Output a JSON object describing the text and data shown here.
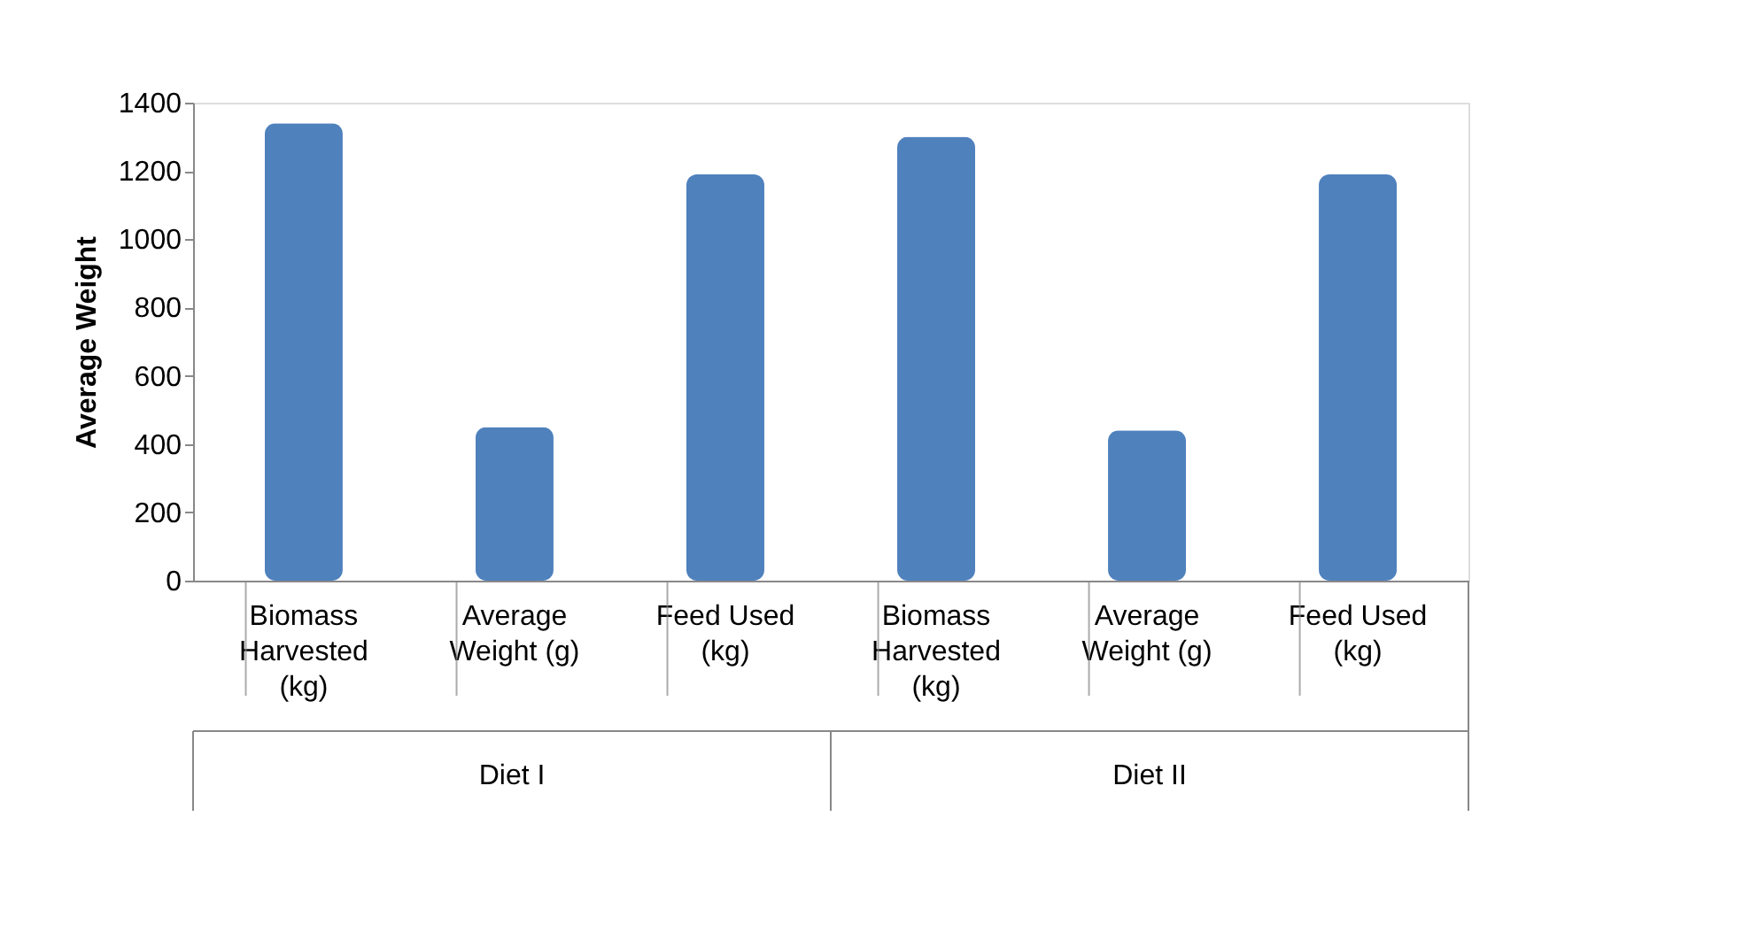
{
  "chart_data": {
    "type": "bar",
    "ylabel": "Average Weight",
    "categories": [
      "Biomass Harvested (kg)",
      "Average Weight (g)",
      "Feed Used (kg)",
      "Biomass Harvested (kg)",
      "Average Weight (g)",
      "Feed Used (kg)"
    ],
    "values": [
      1340,
      450,
      1190,
      1300,
      440,
      1190
    ],
    "color": "#4f81bd",
    "ylim": [
      0,
      1400
    ],
    "yticks": [
      0,
      200,
      400,
      600,
      800,
      1000,
      1200,
      1400
    ],
    "grid": false,
    "annotations": [
      "Diet I",
      "Diet II"
    ]
  }
}
